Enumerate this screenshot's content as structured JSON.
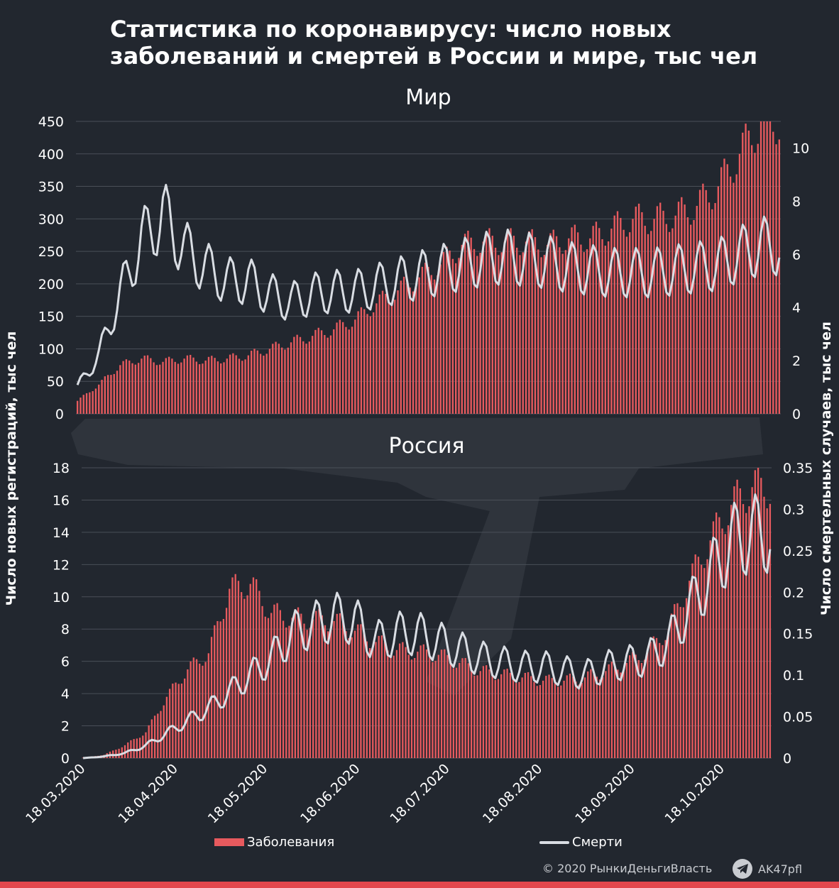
{
  "title": {
    "line1": "Статистика по коронавирусу: число новых",
    "line2": "заболеваний и смертей в России и мире, тыс чел"
  },
  "colors": {
    "background": "#22272f",
    "bars": "#e75a5e",
    "line": "#d9dde3",
    "grid": "#4a4f58",
    "accent_strip": "#e2474d"
  },
  "legend": {
    "cases_label": "Заболевания",
    "deaths_label": "Смерти"
  },
  "footer": {
    "copyright": "© 2020  РынкиДеньгиВласть",
    "telegram": "AK47pfl",
    "telegram_icon": "telegram-plane-icon"
  },
  "chart_data": [
    {
      "type": "bar+line",
      "title": "Мир",
      "ylabel_left": "Число новых регистраций, тыс чел",
      "ylabel_right": "Число смертельных случаев, тыс чел",
      "y_left_ticks": [
        0,
        50,
        100,
        150,
        200,
        250,
        300,
        350,
        400,
        450
      ],
      "y_left_lim": [
        0,
        450
      ],
      "y_right_ticks": [
        0,
        2,
        4,
        6,
        8,
        10
      ],
      "y_right_lim": [
        0,
        11
      ],
      "start_date": "18.03.2020",
      "series": [
        {
          "name": "Заболевания",
          "kind": "bar",
          "axis": "left",
          "weekly_points": [
            {
              "date": "18.03.2020",
              "value": 20
            },
            {
              "date": "25.03.2020",
              "value": 45
            },
            {
              "date": "01.04.2020",
              "value": 75
            },
            {
              "date": "08.04.2020",
              "value": 85
            },
            {
              "date": "15.04.2020",
              "value": 80
            },
            {
              "date": "22.04.2020",
              "value": 85
            },
            {
              "date": "29.04.2020",
              "value": 82
            },
            {
              "date": "06.05.2020",
              "value": 85
            },
            {
              "date": "13.05.2020",
              "value": 90
            },
            {
              "date": "20.05.2020",
              "value": 100
            },
            {
              "date": "27.05.2020",
              "value": 110
            },
            {
              "date": "03.06.2020",
              "value": 120
            },
            {
              "date": "10.06.2020",
              "value": 130
            },
            {
              "date": "17.06.2020",
              "value": 145
            },
            {
              "date": "24.06.2020",
              "value": 170
            },
            {
              "date": "01.07.2020",
              "value": 190
            },
            {
              "date": "08.07.2020",
              "value": 210
            },
            {
              "date": "15.07.2020",
              "value": 230
            },
            {
              "date": "22.07.2020",
              "value": 260
            },
            {
              "date": "29.07.2020",
              "value": 265
            },
            {
              "date": "05.08.2020",
              "value": 265
            },
            {
              "date": "12.08.2020",
              "value": 265
            },
            {
              "date": "19.08.2020",
              "value": 260
            },
            {
              "date": "26.08.2020",
              "value": 270
            },
            {
              "date": "02.09.2020",
              "value": 270
            },
            {
              "date": "09.09.2020",
              "value": 285
            },
            {
              "date": "16.09.2020",
              "value": 300
            },
            {
              "date": "23.09.2020",
              "value": 300
            },
            {
              "date": "30.09.2020",
              "value": 305
            },
            {
              "date": "07.10.2020",
              "value": 320
            },
            {
              "date": "14.10.2020",
              "value": 350
            },
            {
              "date": "21.10.2020",
              "value": 400
            },
            {
              "date": "28.10.2020",
              "value": 450
            }
          ]
        },
        {
          "name": "Смерти",
          "kind": "line",
          "axis": "right",
          "weekly_points": [
            {
              "date": "18.03.2020",
              "value": 1.0
            },
            {
              "date": "25.03.2020",
              "value": 2.2
            },
            {
              "date": "01.04.2020",
              "value": 4.5
            },
            {
              "date": "08.04.2020",
              "value": 6.5
            },
            {
              "date": "15.04.2020",
              "value": 7.5
            },
            {
              "date": "22.04.2020",
              "value": 6.2
            },
            {
              "date": "29.04.2020",
              "value": 5.5
            },
            {
              "date": "06.05.2020",
              "value": 5.0
            },
            {
              "date": "13.05.2020",
              "value": 5.0
            },
            {
              "date": "20.05.2020",
              "value": 4.5
            },
            {
              "date": "27.05.2020",
              "value": 4.2
            },
            {
              "date": "03.06.2020",
              "value": 4.5
            },
            {
              "date": "10.06.2020",
              "value": 4.6
            },
            {
              "date": "17.06.2020",
              "value": 4.6
            },
            {
              "date": "24.06.2020",
              "value": 4.8
            },
            {
              "date": "01.07.2020",
              "value": 5.0
            },
            {
              "date": "08.07.2020",
              "value": 5.2
            },
            {
              "date": "15.07.2020",
              "value": 5.4
            },
            {
              "date": "22.07.2020",
              "value": 5.6
            },
            {
              "date": "29.07.2020",
              "value": 5.8
            },
            {
              "date": "05.08.2020",
              "value": 5.9
            },
            {
              "date": "12.08.2020",
              "value": 5.8
            },
            {
              "date": "19.08.2020",
              "value": 5.7
            },
            {
              "date": "26.08.2020",
              "value": 5.5
            },
            {
              "date": "02.09.2020",
              "value": 5.4
            },
            {
              "date": "09.09.2020",
              "value": 5.3
            },
            {
              "date": "16.09.2020",
              "value": 5.3
            },
            {
              "date": "23.09.2020",
              "value": 5.3
            },
            {
              "date": "30.09.2020",
              "value": 5.4
            },
            {
              "date": "07.10.2020",
              "value": 5.5
            },
            {
              "date": "14.10.2020",
              "value": 5.6
            },
            {
              "date": "21.10.2020",
              "value": 6.0
            },
            {
              "date": "28.10.2020",
              "value": 6.3
            }
          ]
        }
      ]
    },
    {
      "type": "bar+line",
      "title": "Россия",
      "ylabel_left": "Число новых регистраций, тыс чел",
      "ylabel_right": "Число смертельных случаев, тыс чел",
      "y_left_ticks": [
        0,
        2,
        4,
        6,
        8,
        10,
        12,
        14,
        16,
        18
      ],
      "y_left_lim": [
        0,
        18
      ],
      "y_right_ticks": [
        0,
        0.05,
        0.1,
        0.15,
        0.2,
        0.25,
        0.3,
        0.35
      ],
      "y_right_lim": [
        0,
        0.35
      ],
      "x_ticks": [
        "18.03.2020",
        "18.04.2020",
        "18.05.2020",
        "18.06.2020",
        "18.07.2020",
        "18.08.2020",
        "18.09.2020",
        "18.10.2020"
      ],
      "start_date": "18.03.2020",
      "series": [
        {
          "name": "Заболевания",
          "kind": "bar",
          "axis": "left",
          "weekly_points": [
            {
              "date": "18.03.2020",
              "value": 0.03
            },
            {
              "date": "25.03.2020",
              "value": 0.2
            },
            {
              "date": "01.04.2020",
              "value": 0.8
            },
            {
              "date": "08.04.2020",
              "value": 1.6
            },
            {
              "date": "15.04.2020",
              "value": 3.8
            },
            {
              "date": "22.04.2020",
              "value": 5.5
            },
            {
              "date": "29.04.2020",
              "value": 6.5
            },
            {
              "date": "06.05.2020",
              "value": 10.5
            },
            {
              "date": "13.05.2020",
              "value": 10.8
            },
            {
              "date": "20.05.2020",
              "value": 9.0
            },
            {
              "date": "27.05.2020",
              "value": 8.7
            },
            {
              "date": "03.06.2020",
              "value": 8.6
            },
            {
              "date": "10.06.2020",
              "value": 8.5
            },
            {
              "date": "17.06.2020",
              "value": 7.9
            },
            {
              "date": "24.06.2020",
              "value": 7.2
            },
            {
              "date": "01.07.2020",
              "value": 6.7
            },
            {
              "date": "08.07.2020",
              "value": 6.6
            },
            {
              "date": "15.07.2020",
              "value": 6.4
            },
            {
              "date": "22.07.2020",
              "value": 5.9
            },
            {
              "date": "29.07.2020",
              "value": 5.4
            },
            {
              "date": "05.08.2020",
              "value": 5.2
            },
            {
              "date": "12.08.2020",
              "value": 5.0
            },
            {
              "date": "19.08.2020",
              "value": 4.8
            },
            {
              "date": "26.08.2020",
              "value": 4.8
            },
            {
              "date": "02.09.2020",
              "value": 5.0
            },
            {
              "date": "09.09.2020",
              "value": 5.4
            },
            {
              "date": "16.09.2020",
              "value": 5.9
            },
            {
              "date": "23.09.2020",
              "value": 6.6
            },
            {
              "date": "30.09.2020",
              "value": 8.0
            },
            {
              "date": "07.10.2020",
              "value": 11.0
            },
            {
              "date": "14.10.2020",
              "value": 13.5
            },
            {
              "date": "21.10.2020",
              "value": 15.7
            },
            {
              "date": "28.10.2020",
              "value": 16.8
            }
          ]
        },
        {
          "name": "Смерти",
          "kind": "line",
          "axis": "right",
          "weekly_points": [
            {
              "date": "18.03.2020",
              "value": 0.0
            },
            {
              "date": "25.03.2020",
              "value": 0.002
            },
            {
              "date": "01.04.2020",
              "value": 0.006
            },
            {
              "date": "08.04.2020",
              "value": 0.015
            },
            {
              "date": "15.04.2020",
              "value": 0.03
            },
            {
              "date": "22.04.2020",
              "value": 0.045
            },
            {
              "date": "29.04.2020",
              "value": 0.06
            },
            {
              "date": "06.05.2020",
              "value": 0.08
            },
            {
              "date": "13.05.2020",
              "value": 0.1
            },
            {
              "date": "20.05.2020",
              "value": 0.12
            },
            {
              "date": "27.05.2020",
              "value": 0.15
            },
            {
              "date": "03.06.2020",
              "value": 0.16
            },
            {
              "date": "10.06.2020",
              "value": 0.17
            },
            {
              "date": "17.06.2020",
              "value": 0.165
            },
            {
              "date": "24.06.2020",
              "value": 0.14
            },
            {
              "date": "01.07.2020",
              "value": 0.15
            },
            {
              "date": "08.07.2020",
              "value": 0.15
            },
            {
              "date": "15.07.2020",
              "value": 0.14
            },
            {
              "date": "22.07.2020",
              "value": 0.13
            },
            {
              "date": "29.07.2020",
              "value": 0.12
            },
            {
              "date": "05.08.2020",
              "value": 0.115
            },
            {
              "date": "12.08.2020",
              "value": 0.11
            },
            {
              "date": "19.08.2020",
              "value": 0.11
            },
            {
              "date": "26.08.2020",
              "value": 0.105
            },
            {
              "date": "02.09.2020",
              "value": 0.1
            },
            {
              "date": "09.09.2020",
              "value": 0.11
            },
            {
              "date": "16.09.2020",
              "value": 0.115
            },
            {
              "date": "23.09.2020",
              "value": 0.12
            },
            {
              "date": "30.09.2020",
              "value": 0.14
            },
            {
              "date": "07.10.2020",
              "value": 0.18
            },
            {
              "date": "14.10.2020",
              "value": 0.22
            },
            {
              "date": "21.10.2020",
              "value": 0.26
            },
            {
              "date": "28.10.2020",
              "value": 0.27
            }
          ]
        }
      ]
    }
  ]
}
